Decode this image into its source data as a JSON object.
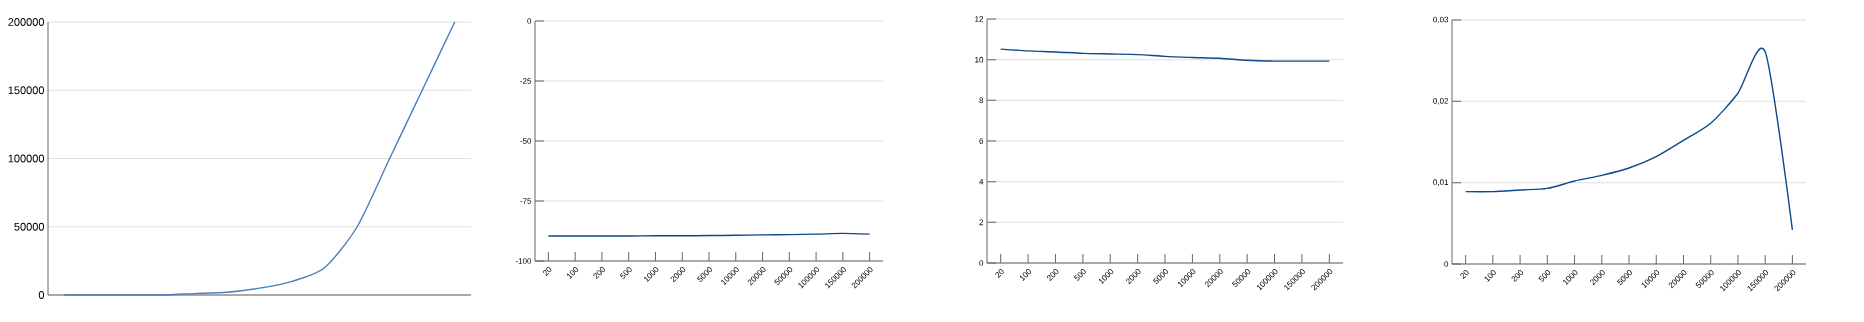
{
  "chart_data": [
    {
      "type": "line",
      "categories": [
        null,
        null,
        null,
        null,
        null,
        null,
        null,
        null,
        null,
        null,
        null,
        null,
        null
      ],
      "series": [
        {
          "color": "#4a7ebb",
          "values": [
            0,
            0,
            0,
            0,
            1000,
            2000,
            5000,
            10000,
            20000,
            50000,
            100000,
            150000,
            200000
          ]
        }
      ],
      "ylim": [
        0,
        200000
      ],
      "yticks": [
        0,
        50000,
        100000,
        150000,
        200000
      ],
      "grid": "y",
      "tick_labels": "y"
    },
    {
      "type": "line",
      "categories": [
        "20",
        "100",
        "200",
        "500",
        "1000",
        "2000",
        "5000",
        "10000",
        "20000",
        "50000",
        "100000",
        "150000",
        "200000"
      ],
      "series": [
        {
          "color": "#0b4a8b",
          "values": [
            -89.6,
            -89.6,
            -89.6,
            -89.6,
            -89.5,
            -89.5,
            -89.4,
            -89.3,
            -89.1,
            -89.0,
            -88.8,
            -88.5,
            -88.8
          ]
        }
      ],
      "ylim": [
        -100,
        0
      ],
      "yticks": [
        -100,
        -75,
        -50,
        -25,
        0
      ],
      "grid": "y"
    },
    {
      "type": "line",
      "categories": [
        "20",
        "100",
        "200",
        "500",
        "1000",
        "2000",
        "5000",
        "10000",
        "20000",
        "50000",
        "100000",
        "150000",
        "200000"
      ],
      "series": [
        {
          "color": "#0b4a8b",
          "values": [
            10.52,
            10.43,
            10.38,
            10.31,
            10.28,
            10.25,
            10.16,
            10.11,
            10.07,
            9.97,
            9.93,
            9.93,
            9.93
          ]
        }
      ],
      "ylim": [
        0,
        12
      ],
      "yticks": [
        0,
        2,
        4,
        6,
        8,
        10,
        12
      ],
      "grid": "y"
    },
    {
      "type": "line",
      "categories": [
        "20",
        "100",
        "200",
        "500",
        "1000",
        "2000",
        "5000",
        "10000",
        "20000",
        "50000",
        "100000",
        "150000",
        "200000"
      ],
      "series": [
        {
          "color": "#0b4a8b",
          "values": [
            0.0089,
            0.0089,
            0.0091,
            0.0093,
            0.0102,
            0.0109,
            0.0118,
            0.0132,
            0.0152,
            0.0173,
            0.021,
            0.0261,
            0.0042
          ]
        }
      ],
      "ylim": [
        0,
        0.03
      ],
      "yticks": [
        0,
        {
          "value": 0.01,
          "label": "0,01"
        },
        {
          "value": 0.02,
          "label": "0,02"
        },
        {
          "value": 0.03,
          "label": "0,03"
        }
      ],
      "grid": "y"
    }
  ]
}
